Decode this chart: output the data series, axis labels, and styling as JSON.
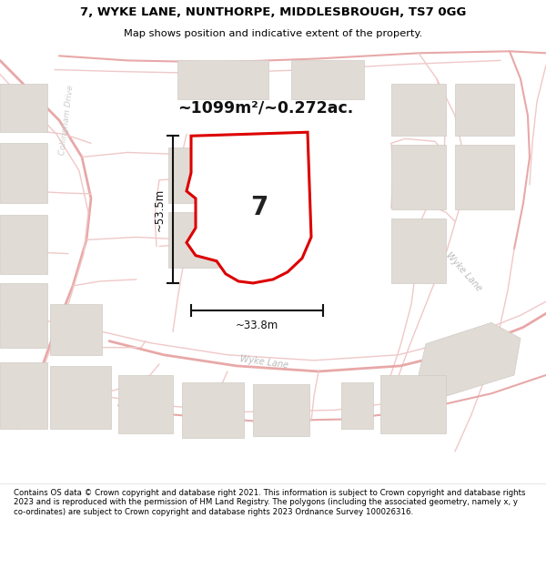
{
  "title_line1": "7, WYKE LANE, NUNTHORPE, MIDDLESBROUGH, TS7 0GG",
  "title_line2": "Map shows position and indicative extent of the property.",
  "area_text": "~1099m²/~0.272ac.",
  "dim_vertical": "~53.5m",
  "dim_horizontal": "~33.8m",
  "property_number": "7",
  "road_label_collingham": "Collingham Drive",
  "road_label_wyke_bottom": "Wyke Lane",
  "road_label_wyke_right": "Wyke Lane",
  "footer": "Contains OS data © Crown copyright and database right 2021. This information is subject to Crown copyright and database rights 2023 and is reproduced with the permission of HM Land Registry. The polygons (including the associated geometry, namely x, y co-ordinates) are subject to Crown copyright and database rights 2023 Ordnance Survey 100026316.",
  "map_bg": "#f7f4f1",
  "road_light": "#f0c8c8",
  "road_medium": "#e8a8a8",
  "road_dark": "#d08888",
  "property_fill": "#ffffff",
  "property_edge": "#dd0000",
  "building_fill": "#e0dbd5",
  "building_edge": "#d0cbc5",
  "dim_color": "#111111",
  "road_label_color": "#bbbbbb",
  "collingham_color": "#cccccc"
}
